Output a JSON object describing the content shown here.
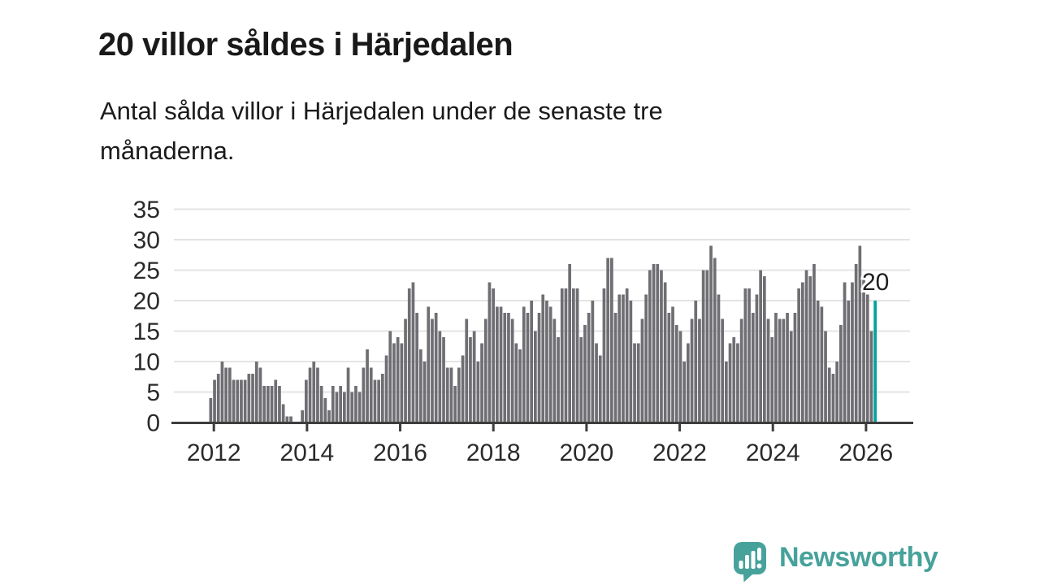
{
  "header": {
    "title": "20 villor såldes i Härjedalen",
    "subtitle_lines": [
      "Antal sålda villor i Härjedalen under de senaste tre",
      "månaderna."
    ]
  },
  "chart_data": {
    "type": "bar",
    "title": "20 villor såldes i Härjedalen",
    "subtitle": "Antal sålda villor i Härjedalen under de senaste tre månaderna.",
    "xlabel": "",
    "ylabel": "",
    "ylim": [
      0,
      35
    ],
    "yticks": [
      0,
      5,
      10,
      15,
      20,
      25,
      30,
      35
    ],
    "xticks": [
      "2012",
      "2014",
      "2016",
      "2018",
      "2020",
      "2022",
      "2024",
      "2026"
    ],
    "grid": true,
    "legend": false,
    "bar_color": "#6e6e73",
    "highlight_color": "#00a29e",
    "highlight_label": "20",
    "highlight_value": 20,
    "values": [
      4,
      7,
      8,
      10,
      9,
      9,
      7,
      7,
      7,
      7,
      8,
      8,
      10,
      9,
      6,
      6,
      6,
      7,
      6,
      3,
      1,
      1,
      0,
      0,
      2,
      7,
      9,
      10,
      9,
      6,
      4,
      2,
      6,
      5,
      6,
      5,
      9,
      5,
      6,
      5,
      9,
      12,
      9,
      7,
      7,
      8,
      11,
      15,
      13,
      14,
      13,
      17,
      22,
      23,
      18,
      12,
      10,
      19,
      17,
      18,
      15,
      14,
      9,
      9,
      6,
      9,
      11,
      17,
      14,
      15,
      10,
      13,
      17,
      23,
      22,
      19,
      19,
      18,
      18,
      17,
      13,
      12,
      19,
      18,
      20,
      15,
      18,
      21,
      20,
      19,
      17,
      14,
      22,
      22,
      26,
      22,
      22,
      14,
      16,
      18,
      20,
      13,
      11,
      22,
      27,
      27,
      18,
      21,
      21,
      22,
      20,
      13,
      13,
      17,
      21,
      25,
      26,
      26,
      25,
      23,
      18,
      19,
      16,
      15,
      10,
      13,
      17,
      20,
      17,
      25,
      25,
      29,
      27,
      21,
      17,
      10,
      13,
      14,
      13,
      17,
      22,
      22,
      18,
      21,
      25,
      24,
      17,
      14,
      18,
      17,
      17,
      18,
      15,
      18,
      22,
      23,
      25,
      24,
      26,
      20,
      19,
      15,
      9,
      8,
      10,
      16,
      23,
      20,
      23,
      26,
      29,
      24,
      21,
      15,
      20
    ]
  },
  "branding": {
    "name": "Newsworthy",
    "color": "#46a29b",
    "icon": "newsworthy-chart-bubble-icon"
  }
}
